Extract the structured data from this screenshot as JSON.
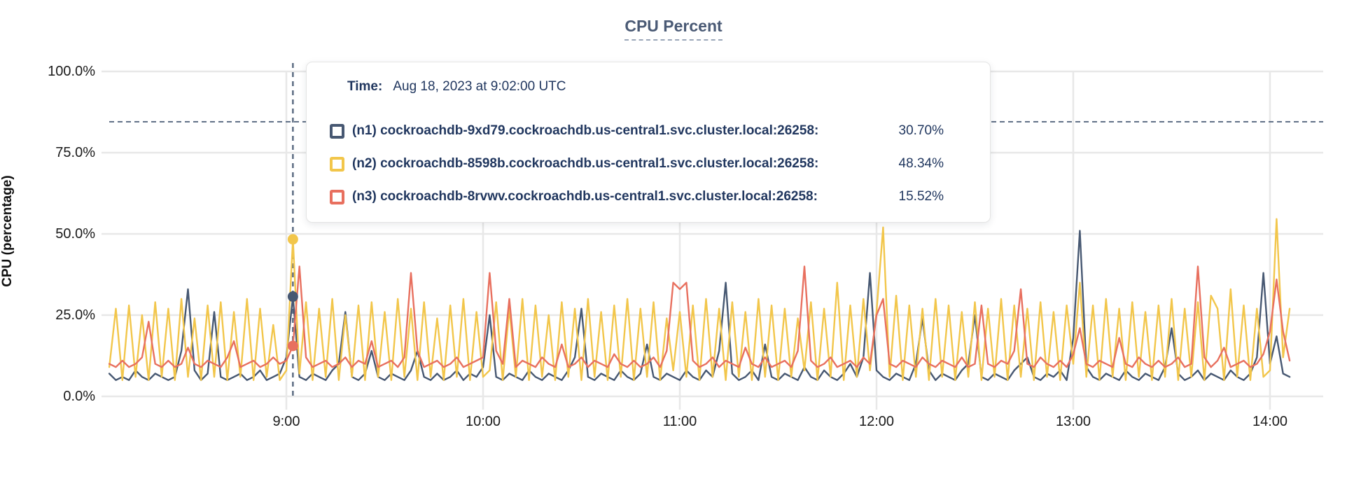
{
  "title": "CPU Percent",
  "axes": {
    "y_label": "CPU (percentage)",
    "y_ticks": [
      {
        "value": 100,
        "label": "100.0%"
      },
      {
        "value": 75,
        "label": "75.0%"
      },
      {
        "value": 50,
        "label": "50.0%"
      },
      {
        "value": 25,
        "label": "25.0%"
      },
      {
        "value": 0,
        "label": "0.0%"
      }
    ],
    "x_ticks": [
      {
        "minutes": 540,
        "label": "9:00"
      },
      {
        "minutes": 600,
        "label": "10:00"
      },
      {
        "minutes": 660,
        "label": "11:00"
      },
      {
        "minutes": 720,
        "label": "12:00"
      },
      {
        "minutes": 780,
        "label": "13:00"
      },
      {
        "minutes": 840,
        "label": "14:00"
      }
    ]
  },
  "colors": {
    "n1": "#475872",
    "n2": "#f2c64b",
    "n3": "#e8705f",
    "gridline": "#e8e8e8",
    "dashed_guides": "#5b6b82",
    "tooltip_text": "#21375f",
    "title_text": "#4a5a75"
  },
  "hover": {
    "time_minutes": 542,
    "time_label": "Time:",
    "time_value": "Aug 18, 2023 at 9:02:00 UTC",
    "rows": [
      {
        "color": "#475872",
        "label": "(n1) cockroachdb-9xd79.cockroachdb.us-central1.svc.cluster.local:26258:",
        "value": "30.70%"
      },
      {
        "color": "#f2c64b",
        "label": "(n2) cockroachdb-8598b.cockroachdb.us-central1.svc.cluster.local:26258:",
        "value": "48.34%"
      },
      {
        "color": "#e8705f",
        "label": "(n3) cockroachdb-8rvwv.cockroachdb.us-central1.svc.cluster.local:26258:",
        "value": "15.52%"
      }
    ]
  },
  "chart_data": {
    "type": "line",
    "title": "CPU Percent",
    "ylabel": "CPU (percentage)",
    "ylim": [
      0,
      100
    ],
    "x_start_minutes": 486,
    "x_step_minutes": 2,
    "threshold_percent": 84.5,
    "legend_position": "tooltip",
    "grid": true,
    "series": [
      {
        "name": "(n1) cockroachdb-9xd79.cockroachdb.us-central1.svc.cluster.local:26258",
        "color": "#475872",
        "values": [
          7,
          5,
          6,
          5,
          8,
          6,
          5,
          7,
          6,
          5,
          6,
          14,
          33,
          8,
          5,
          7,
          26,
          6,
          5,
          6,
          7,
          5,
          6,
          8,
          5,
          6,
          7,
          12,
          30.7,
          6,
          5,
          7,
          6,
          5,
          8,
          10,
          26,
          6,
          5,
          7,
          14,
          6,
          5,
          7,
          6,
          5,
          8,
          14,
          6,
          5,
          7,
          5,
          6,
          8,
          5,
          7,
          6,
          9,
          25,
          6,
          5,
          7,
          6,
          5,
          8,
          6,
          5,
          7,
          6,
          5,
          8,
          12,
          27,
          6,
          5,
          7,
          6,
          5,
          8,
          6,
          5,
          7,
          16,
          6,
          5,
          7,
          6,
          5,
          8,
          6,
          5,
          8,
          6,
          14,
          35,
          7,
          5,
          6,
          8,
          5,
          16,
          6,
          5,
          7,
          6,
          5,
          9,
          6,
          5,
          8,
          6,
          5,
          7,
          10,
          6,
          12,
          38,
          8,
          6,
          5,
          7,
          6,
          5,
          10,
          24,
          8,
          5,
          7,
          6,
          5,
          8,
          10,
          25,
          6,
          5,
          7,
          6,
          5,
          8,
          10,
          12,
          6,
          5,
          7,
          6,
          8,
          5,
          18,
          51,
          9,
          6,
          5,
          7,
          6,
          5,
          8,
          6,
          5,
          7,
          6,
          5,
          9,
          21,
          7,
          5,
          6,
          8,
          5,
          7,
          6,
          5,
          8,
          6,
          5,
          7,
          12,
          38,
          10,
          18.5,
          7,
          6
        ]
      },
      {
        "name": "(n2) cockroachdb-8598b.cockroachdb.us-central1.svc.cluster.local:26258",
        "color": "#f2c64b",
        "values": [
          9,
          27,
          5,
          28,
          6,
          25,
          5,
          29,
          6,
          27,
          5,
          30,
          6,
          24,
          5,
          28,
          6,
          29,
          5,
          26,
          6,
          30,
          5,
          27,
          6,
          22,
          5,
          8,
          48.34,
          7,
          29,
          5,
          27,
          6,
          30,
          5,
          25,
          6,
          28,
          5,
          29,
          6,
          26,
          5,
          30,
          6,
          27,
          5,
          29,
          6,
          24,
          5,
          28,
          6,
          30,
          5,
          26,
          6,
          8,
          29,
          5,
          27,
          6,
          30,
          5,
          28,
          6,
          25,
          5,
          29,
          6,
          27,
          5,
          30,
          6,
          26,
          5,
          28,
          6,
          30,
          5,
          27,
          6,
          29,
          5,
          24,
          8,
          26,
          6,
          28,
          5,
          30,
          6,
          27,
          5,
          29,
          6,
          26,
          5,
          30,
          6,
          28,
          5,
          27,
          6,
          24,
          8,
          29,
          5,
          27,
          6,
          35,
          5,
          28,
          6,
          30,
          8,
          26,
          52,
          6,
          31,
          5,
          28,
          6,
          27,
          5,
          30,
          6,
          28,
          5,
          26,
          6,
          29,
          5,
          27,
          6,
          30,
          5,
          28,
          6,
          27,
          5,
          29,
          6,
          26,
          5,
          28,
          10,
          35,
          6,
          28,
          5,
          30,
          6,
          27,
          5,
          29,
          6,
          26,
          5,
          28,
          6,
          30,
          5,
          27,
          6,
          29,
          5,
          31,
          27,
          5,
          33,
          6,
          28,
          5,
          27,
          6,
          8,
          54.6,
          12,
          27
        ]
      },
      {
        "name": "(n3) cockroachdb-8rvwv.cockroachdb.us-central1.svc.cluster.local:26258",
        "color": "#e8705f",
        "values": [
          10,
          9,
          11,
          9,
          10,
          12,
          23,
          10,
          9,
          11,
          9,
          10,
          15,
          10,
          9,
          11,
          10,
          9,
          12,
          17,
          9,
          10,
          11,
          9,
          10,
          12,
          10,
          11,
          15.52,
          40,
          12,
          9,
          10,
          11,
          9,
          10,
          12,
          9,
          11,
          10,
          17,
          9,
          10,
          11,
          9,
          12,
          38,
          14,
          9,
          10,
          11,
          9,
          10,
          12,
          9,
          10,
          11,
          12,
          38,
          14,
          10,
          30,
          9,
          11,
          10,
          9,
          12,
          10,
          9,
          16,
          9,
          10,
          12,
          9,
          11,
          10,
          9,
          13,
          10,
          9,
          11,
          9,
          10,
          12,
          9,
          14,
          35,
          33,
          35,
          11,
          9,
          10,
          12,
          9,
          11,
          10,
          9,
          15,
          10,
          9,
          12,
          9,
          10,
          11,
          9,
          14,
          40,
          11,
          9,
          10,
          12,
          9,
          10,
          11,
          9,
          12,
          10,
          25,
          30,
          10,
          9,
          11,
          10,
          9,
          12,
          10,
          9,
          11,
          10,
          9,
          12,
          9,
          10,
          28,
          10,
          9,
          11,
          10,
          14,
          33,
          10,
          9,
          12,
          10,
          9,
          11,
          9,
          13,
          21,
          10,
          9,
          11,
          10,
          9,
          18,
          10,
          9,
          12,
          10,
          9,
          11,
          9,
          10,
          12,
          9,
          10,
          40,
          12,
          9,
          11,
          15,
          9,
          10,
          11,
          9,
          10,
          13,
          20,
          36,
          20,
          11
        ]
      }
    ]
  }
}
